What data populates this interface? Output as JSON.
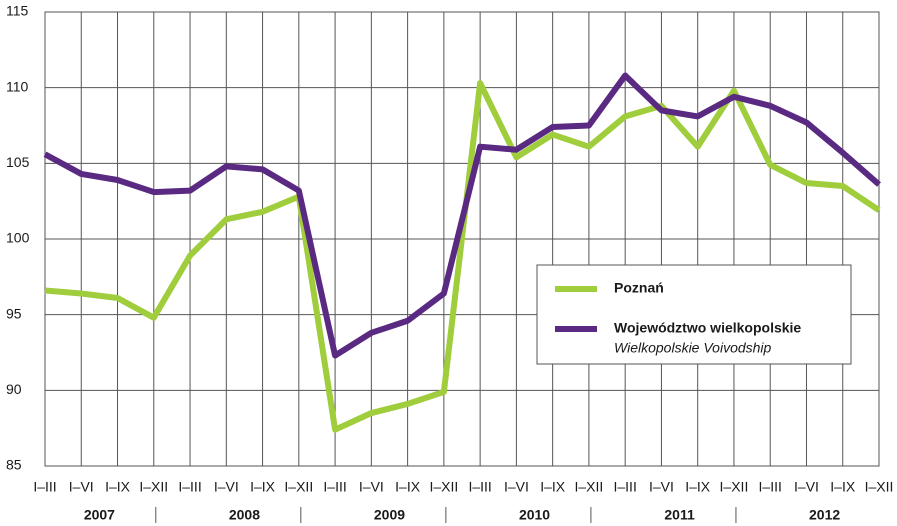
{
  "chart_data": {
    "type": "line",
    "categories": [
      "I–III",
      "I–VI",
      "I–IX",
      "I–XII",
      "I–III",
      "I–VI",
      "I–IX",
      "I–XII",
      "I–III",
      "I–VI",
      "I–IX",
      "I–XII",
      "I–III",
      "I–VI",
      "I–IX",
      "I–XII",
      "I–III",
      "I–VI",
      "I–IX",
      "I–XII",
      "I–III",
      "I–VI",
      "I–IX",
      "I–XII"
    ],
    "years": [
      "2007",
      "2008",
      "2009",
      "2010",
      "2011",
      "2012"
    ],
    "series": [
      {
        "name": "Poznań",
        "color": "#9fcd3c",
        "values": [
          96.6,
          96.4,
          96.1,
          94.8,
          98.9,
          101.3,
          101.8,
          102.8,
          87.4,
          88.5,
          89.1,
          89.9,
          110.3,
          105.4,
          106.9,
          106.1,
          108.1,
          108.8,
          106.1,
          109.8,
          104.9,
          103.7,
          103.5,
          101.9
        ]
      },
      {
        "name": "Województwo wielkopolskie",
        "name_en": "Wielkopolskie Voivodship",
        "color": "#5a2a82",
        "values": [
          105.6,
          104.3,
          103.9,
          103.1,
          103.2,
          104.8,
          104.6,
          103.2,
          92.3,
          93.8,
          94.6,
          96.4,
          106.1,
          105.9,
          107.4,
          107.5,
          110.8,
          108.5,
          108.1,
          109.4,
          108.8,
          107.7,
          105.7,
          103.6
        ]
      }
    ],
    "ylim": [
      85,
      115
    ],
    "yticks": [
      85,
      90,
      95,
      100,
      105,
      110,
      115
    ],
    "grid": true,
    "legend": "right"
  }
}
